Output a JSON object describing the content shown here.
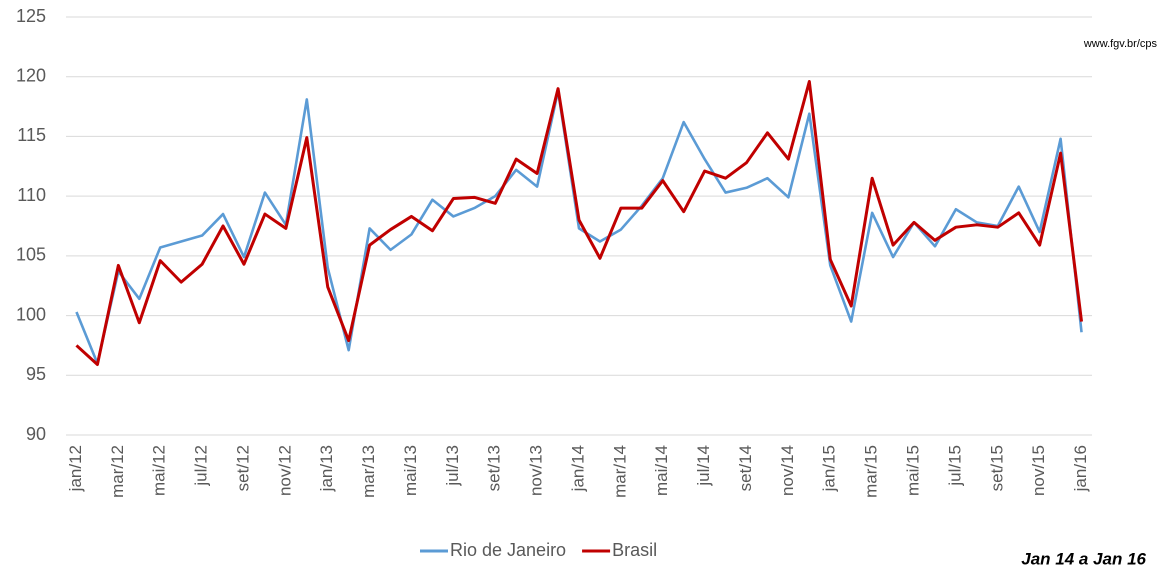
{
  "chart_data": {
    "type": "line",
    "source": "www.fgv.br/cps",
    "note": "Jan 14 a Jan 16",
    "categories": [
      "jan/12",
      null,
      "mar/12",
      null,
      "mai/12",
      null,
      "jul/12",
      null,
      "set/12",
      null,
      "nov/12",
      null,
      "jan/13",
      null,
      "mar/13",
      null,
      "mai/13",
      null,
      "jul/13",
      null,
      "set/13",
      null,
      "nov/13",
      null,
      "jan/14",
      null,
      "mar/14",
      null,
      "mai/14",
      null,
      "jul/14",
      null,
      "set/14",
      null,
      "nov/14",
      null,
      "jan/15",
      null,
      "mar/15",
      null,
      "mai/15",
      null,
      "jul/15",
      null,
      "set/15",
      null,
      "nov/15",
      null,
      "jan/16"
    ],
    "series": [
      {
        "name": "Rio de Janeiro",
        "color": "#5b9bd5",
        "values": [
          100.3,
          96.0,
          103.7,
          101.4,
          105.7,
          106.2,
          106.7,
          108.5,
          104.9,
          110.3,
          107.6,
          118.1,
          104.0,
          97.1,
          107.3,
          105.5,
          106.8,
          109.7,
          108.3,
          109.0,
          110.0,
          112.2,
          110.8,
          118.8,
          107.3,
          106.2,
          107.2,
          109.2,
          111.5,
          116.2,
          113.1,
          110.3,
          110.7,
          111.5,
          109.9,
          116.9,
          104.2,
          99.5,
          108.6,
          104.9,
          107.8,
          105.8,
          108.9,
          107.8,
          107.5,
          110.8,
          107.0,
          114.8,
          98.6
        ]
      },
      {
        "name": "Brasil",
        "color": "#c00000",
        "values": [
          97.5,
          95.9,
          104.2,
          99.4,
          104.6,
          102.8,
          104.3,
          107.5,
          104.3,
          108.5,
          107.3,
          114.9,
          102.4,
          97.9,
          105.9,
          107.2,
          108.3,
          107.1,
          109.8,
          109.9,
          109.4,
          113.1,
          111.9,
          119.0,
          108.0,
          104.8,
          109.0,
          109.0,
          111.3,
          108.7,
          112.1,
          111.5,
          112.8,
          115.3,
          113.1,
          119.6,
          104.7,
          100.8,
          111.5,
          105.9,
          107.8,
          106.3,
          107.4,
          107.6,
          107.4,
          108.6,
          105.9,
          113.6,
          99.5
        ]
      }
    ],
    "ylim": [
      90,
      125
    ],
    "yticks": [
      90,
      95,
      100,
      105,
      110,
      115,
      120,
      125
    ],
    "grid": true,
    "legend": "bottom"
  }
}
